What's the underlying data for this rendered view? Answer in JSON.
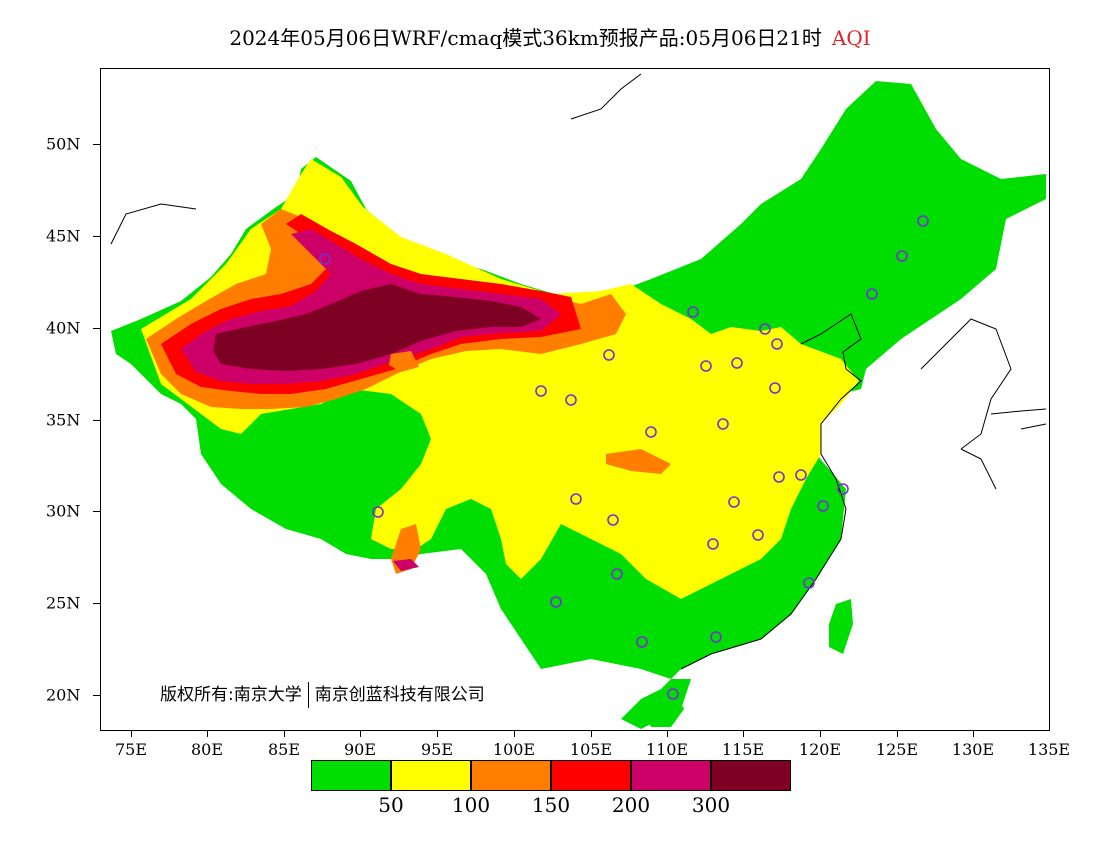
{
  "title": {
    "text": "2024年05月06日WRF/cmaq模式36km预报产品:05月06日21时",
    "aqi_label": "AQI"
  },
  "axes": {
    "y_ticks": [
      "50N",
      "45N",
      "40N",
      "35N",
      "30N",
      "25N",
      "20N"
    ],
    "x_ticks": [
      "75E",
      "80E",
      "85E",
      "90E",
      "95E",
      "100E",
      "105E",
      "110E",
      "115E",
      "120E",
      "125E",
      "130E",
      "135E"
    ]
  },
  "copyright": {
    "left": "版权所有:南京大学",
    "right": "南京创蓝科技有限公司"
  },
  "legend": {
    "colors": [
      "#00dd00",
      "#ffff00",
      "#ff7e00",
      "#ff0000",
      "#cc0066",
      "#7e0023"
    ],
    "labels": [
      "50",
      "100",
      "150",
      "200",
      "300"
    ]
  },
  "colors": {
    "good": "#00dd00",
    "moderate": "#ffff00",
    "usg": "#ff7e00",
    "unhealthy": "#ff0000",
    "very_unhealthy": "#cc0066",
    "hazardous": "#7e0023",
    "station_marker": "#7a2ed6",
    "aqi_title": "#e0242b"
  }
}
